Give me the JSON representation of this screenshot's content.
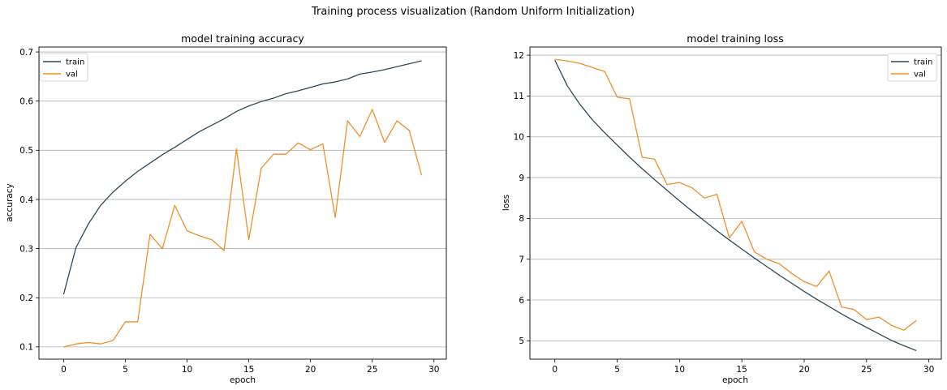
{
  "figure": {
    "suptitle": "Training process visualization (Random Uniform Initialization)"
  },
  "colors": {
    "train": "#2f4858",
    "val": "#f28e2b",
    "grid": "#b0b0b0",
    "axes": "#000000"
  },
  "chart_data": [
    {
      "type": "line",
      "title": "model training accuracy",
      "xlabel": "epoch",
      "ylabel": "accuracy",
      "xlim": [
        -2,
        31
      ],
      "ylim": [
        0.075,
        0.71
      ],
      "xticks": [
        0,
        5,
        10,
        15,
        20,
        25,
        30
      ],
      "yticks": [
        0.1,
        0.2,
        0.3,
        0.4,
        0.5,
        0.6,
        0.7
      ],
      "ytick_labels": [
        "0.1",
        "0.2",
        "0.3",
        "0.4",
        "0.5",
        "0.6",
        "0.7"
      ],
      "grid": "y",
      "legend": "top-left",
      "x": [
        0,
        1,
        2,
        3,
        4,
        5,
        6,
        7,
        8,
        9,
        10,
        11,
        12,
        13,
        14,
        15,
        16,
        17,
        18,
        19,
        20,
        21,
        22,
        23,
        24,
        25,
        26,
        27,
        28,
        29
      ],
      "series": [
        {
          "name": "train",
          "color": "#2f4858",
          "values": [
            0.207,
            0.302,
            0.35,
            0.388,
            0.415,
            0.437,
            0.457,
            0.474,
            0.491,
            0.506,
            0.522,
            0.538,
            0.551,
            0.564,
            0.579,
            0.59,
            0.599,
            0.606,
            0.615,
            0.621,
            0.628,
            0.635,
            0.639,
            0.645,
            0.655,
            0.659,
            0.664,
            0.67,
            0.676,
            0.682
          ]
        },
        {
          "name": "val",
          "color": "#f28e2b",
          "values": [
            0.1,
            0.106,
            0.109,
            0.106,
            0.113,
            0.151,
            0.151,
            0.329,
            0.3,
            0.388,
            0.336,
            0.326,
            0.318,
            0.296,
            0.503,
            0.318,
            0.463,
            0.492,
            0.492,
            0.515,
            0.501,
            0.513,
            0.363,
            0.56,
            0.528,
            0.583,
            0.516,
            0.56,
            0.54,
            0.449
          ]
        }
      ]
    },
    {
      "type": "line",
      "title": "model training loss",
      "xlabel": "epoch",
      "ylabel": "loss",
      "xlim": [
        -2,
        31
      ],
      "ylim": [
        4.55,
        12.2
      ],
      "xticks": [
        0,
        5,
        10,
        15,
        20,
        25,
        30
      ],
      "yticks": [
        5,
        6,
        7,
        8,
        9,
        10,
        11,
        12
      ],
      "ytick_labels": [
        "5",
        "6",
        "7",
        "8",
        "9",
        "10",
        "11",
        "12"
      ],
      "grid": "y",
      "legend": "top-right",
      "x": [
        0,
        1,
        2,
        3,
        4,
        5,
        6,
        7,
        8,
        9,
        10,
        11,
        12,
        13,
        14,
        15,
        16,
        17,
        18,
        19,
        20,
        21,
        22,
        23,
        24,
        25,
        26,
        27,
        28,
        29
      ],
      "series": [
        {
          "name": "train",
          "color": "#2f4858",
          "values": [
            11.88,
            11.25,
            10.8,
            10.42,
            10.1,
            9.8,
            9.5,
            9.22,
            8.95,
            8.69,
            8.43,
            8.18,
            7.94,
            7.7,
            7.47,
            7.25,
            7.03,
            6.82,
            6.61,
            6.41,
            6.21,
            6.02,
            5.84,
            5.66,
            5.49,
            5.33,
            5.17,
            5.01,
            4.88,
            4.76
          ]
        },
        {
          "name": "val",
          "color": "#f28e2b",
          "values": [
            11.9,
            11.86,
            11.8,
            11.7,
            11.6,
            10.97,
            10.93,
            9.5,
            9.45,
            8.83,
            8.88,
            8.75,
            8.5,
            8.59,
            7.52,
            7.93,
            7.18,
            7.0,
            6.89,
            6.65,
            6.45,
            6.33,
            6.71,
            5.83,
            5.77,
            5.52,
            5.58,
            5.38,
            5.26,
            5.5
          ]
        }
      ]
    }
  ]
}
